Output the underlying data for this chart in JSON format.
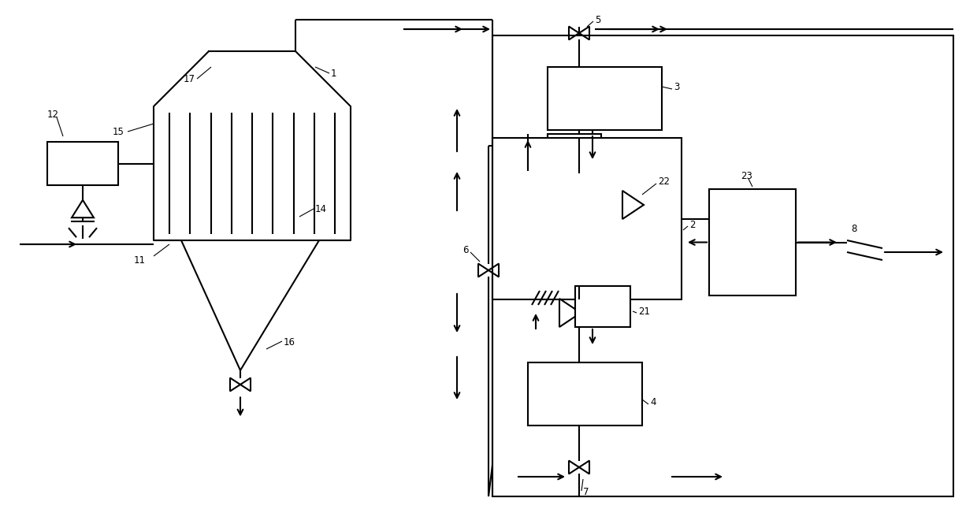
{
  "bg_color": "#ffffff",
  "line_color": "#000000",
  "lw": 1.5,
  "lw_thin": 0.8,
  "figsize": [
    12.4,
    6.65
  ],
  "dpi": 100,
  "fs": 8.5
}
